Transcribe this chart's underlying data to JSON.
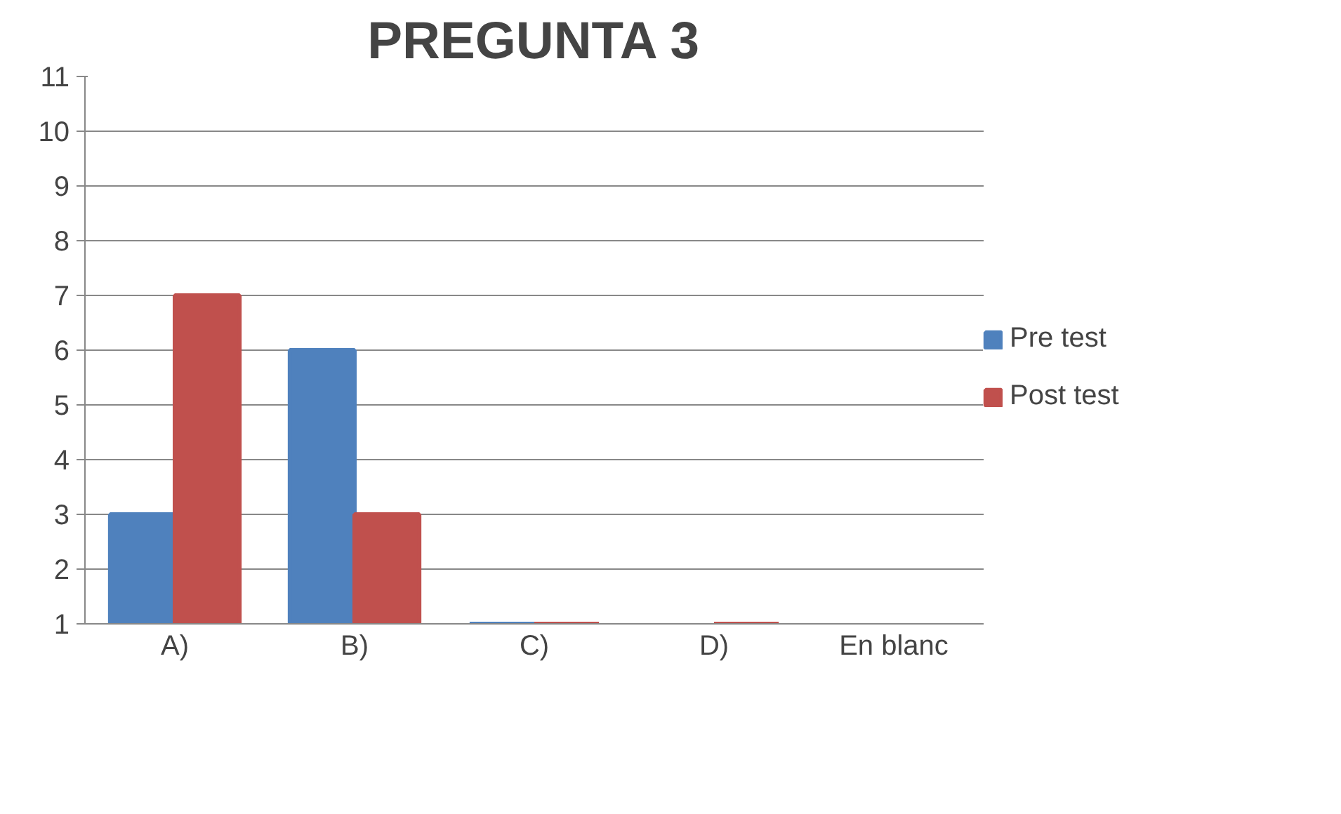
{
  "chart_data": {
    "type": "bar",
    "title": "PREGUNTA 3",
    "categories": [
      "A)",
      "B)",
      "C)",
      "D)",
      "En blanc"
    ],
    "series": [
      {
        "name": "Pre test",
        "color": "#4f81bd",
        "values": [
          3,
          6,
          1,
          null,
          null
        ]
      },
      {
        "name": "Post test",
        "color": "#c0504d",
        "values": [
          7,
          3,
          1,
          1,
          null
        ]
      }
    ],
    "ylim": [
      1,
      11
    ],
    "yticks": [
      1,
      2,
      3,
      4,
      5,
      6,
      7,
      8,
      9,
      10,
      11
    ],
    "grid": "y",
    "legend": "right"
  }
}
